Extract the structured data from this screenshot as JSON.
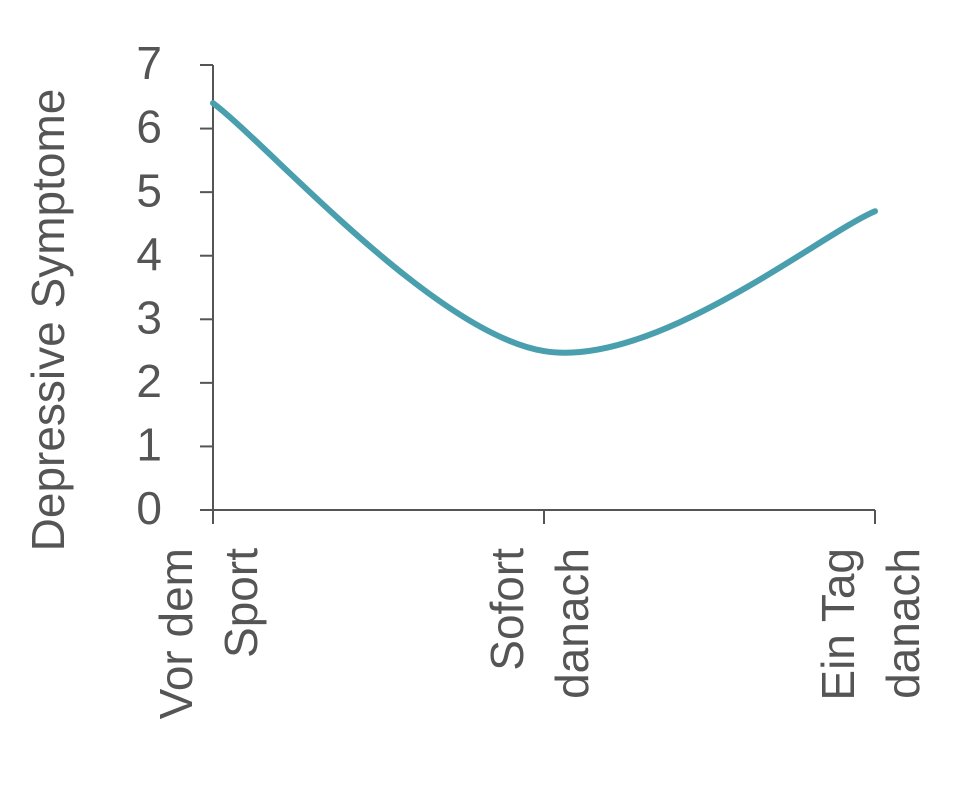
{
  "chart_data": {
    "type": "line",
    "y_label": "Depressive Symptome",
    "categories": [
      [
        "Vor dem",
        "Sport"
      ],
      [
        "Sofort",
        "danach"
      ],
      [
        "Ein Tag",
        "danach"
      ]
    ],
    "values": [
      6.4,
      2.5,
      4.7
    ],
    "color": "#4a9fae",
    "smooth": true,
    "ylim": [
      0,
      7
    ],
    "yticks": [
      0,
      1,
      2,
      3,
      4,
      5,
      6,
      7
    ],
    "grid": false
  }
}
